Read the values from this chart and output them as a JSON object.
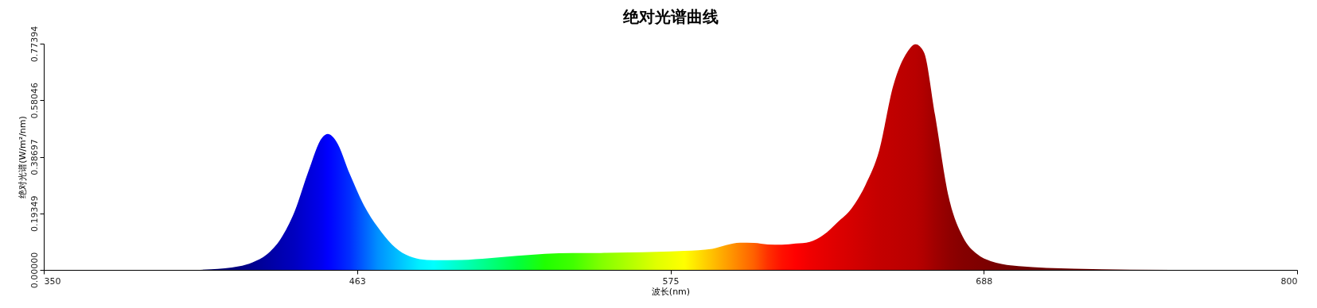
{
  "chart_data": {
    "type": "area",
    "title": "绝对光谱曲线",
    "xlabel": "波长(nm)",
    "ylabel": "绝对光谱(W/m²/nm)",
    "xlim": [
      350,
      800
    ],
    "xticks": [
      350,
      {
        "value": 462.5,
        "label": "463"
      },
      575,
      {
        "value": 687.5,
        "label": "688"
      },
      800
    ],
    "ylim": [
      0,
      0.77394
    ],
    "yticks": [
      {
        "value": 0,
        "label": "0.00000"
      },
      0.19349,
      0.38697,
      0.58046,
      0.77394
    ],
    "x": [
      350,
      405,
      410,
      420,
      425,
      430,
      435,
      440,
      445,
      450,
      452,
      455,
      460,
      465,
      470,
      475,
      480,
      485,
      490,
      500,
      510,
      520,
      530,
      540,
      550,
      560,
      570,
      580,
      590,
      595,
      600,
      605,
      610,
      615,
      620,
      625,
      630,
      635,
      640,
      645,
      650,
      655,
      660,
      663,
      666,
      670,
      675,
      680,
      685,
      690,
      700,
      720,
      740,
      800
    ],
    "series": [
      {
        "values": [
          0,
          0,
          0.002,
          0.012,
          0.026,
          0.052,
          0.105,
          0.198,
          0.337,
          0.453,
          0.465,
          0.44,
          0.325,
          0.22,
          0.145,
          0.087,
          0.052,
          0.037,
          0.033,
          0.034,
          0.04,
          0.048,
          0.055,
          0.058,
          0.058,
          0.06,
          0.062,
          0.065,
          0.072,
          0.085,
          0.093,
          0.092,
          0.087,
          0.086,
          0.09,
          0.096,
          0.12,
          0.163,
          0.21,
          0.29,
          0.41,
          0.63,
          0.745,
          0.772,
          0.745,
          0.53,
          0.246,
          0.113,
          0.055,
          0.03,
          0.013,
          0.004,
          0.001,
          0
        ],
        "colors": [
          "#000060",
          "#000060",
          "#000070",
          "#000080",
          "#000090",
          "#0000a0",
          "#0000b0",
          "#0000c0",
          "#0000d8",
          "#0000f0",
          "#0000ff",
          "#0010ff",
          "#0030ff",
          "#0060ff",
          "#0090ff",
          "#00b0ff",
          "#00d0ff",
          "#00f0ff",
          "#00ffff",
          "#00ffc0",
          "#00ff80",
          "#00ff40",
          "#20ff00",
          "#40ff00",
          "#80ff00",
          "#b0ff00",
          "#e0ff00",
          "#ffff00",
          "#ffc000",
          "#ffa000",
          "#ff8000",
          "#ff6000",
          "#ff3000",
          "#ff1000",
          "#ff0000",
          "#f00000",
          "#e60000",
          "#dd0000",
          "#d50000",
          "#cc0000",
          "#c40000",
          "#c00000",
          "#bb0000",
          "#b80000",
          "#b00000",
          "#a00000",
          "#900000",
          "#850000",
          "#800000",
          "#7a0000",
          "#700000",
          "#700000",
          "#700000",
          "#700000"
        ]
      }
    ]
  }
}
